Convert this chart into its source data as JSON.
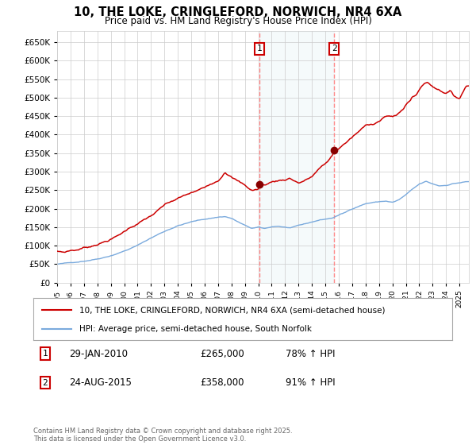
{
  "title": "10, THE LOKE, CRINGLEFORD, NORWICH, NR4 6XA",
  "subtitle": "Price paid vs. HM Land Registry's House Price Index (HPI)",
  "legend_line1": "10, THE LOKE, CRINGLEFORD, NORWICH, NR4 6XA (semi-detached house)",
  "legend_line2": "HPI: Average price, semi-detached house, South Norfolk",
  "footnote": "Contains HM Land Registry data © Crown copyright and database right 2025.\nThis data is licensed under the Open Government Licence v3.0.",
  "marker1_date": "29-JAN-2010",
  "marker1_price": "£265,000",
  "marker1_hpi": "78% ↑ HPI",
  "marker2_date": "24-AUG-2015",
  "marker2_price": "£358,000",
  "marker2_hpi": "91% ↑ HPI",
  "house_color": "#cc0000",
  "hpi_color": "#7aaadd",
  "vline_color": "#ff8888",
  "grid_color": "#cccccc",
  "bg_color": "#ffffff",
  "ylim": [
    0,
    680000
  ],
  "yticks": [
    0,
    50000,
    100000,
    150000,
    200000,
    250000,
    300000,
    350000,
    400000,
    450000,
    500000,
    550000,
    600000,
    650000
  ],
  "xlim_start": 1995.0,
  "xlim_end": 2025.7,
  "marker1_x": 2010.08,
  "marker2_x": 2015.65,
  "marker1_y": 265000,
  "marker2_y": 358000
}
